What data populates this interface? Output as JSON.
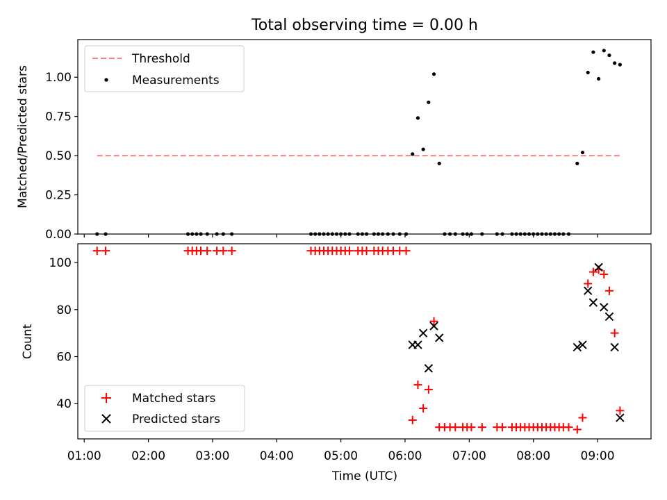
{
  "chart_data": [
    {
      "type": "scatter",
      "title": "Total observing time = 0.00 h",
      "xlabel": "",
      "ylabel": "Matched/Predicted stars",
      "xlim": [
        "00:54",
        "09:50"
      ],
      "ylim": [
        0,
        1.24
      ],
      "yticks": [
        "0.00",
        "0.25",
        "0.50",
        "0.75",
        "1.00"
      ],
      "legend_position": "top-left",
      "threshold": {
        "name": "Threshold",
        "value": 0.5,
        "x": [
          "01:12",
          "09:22"
        ],
        "color": "#ff7f7f",
        "style": "dashed"
      },
      "series": [
        {
          "name": "Measurements",
          "color": "#000000",
          "marker": "dot",
          "points": [
            [
              "01:12",
              0
            ],
            [
              "01:20",
              0
            ],
            [
              "02:37",
              0
            ],
            [
              "02:41",
              0
            ],
            [
              "02:45",
              0
            ],
            [
              "02:49",
              0
            ],
            [
              "02:55",
              0
            ],
            [
              "03:04",
              0
            ],
            [
              "03:10",
              0
            ],
            [
              "03:18",
              0
            ],
            [
              "04:32",
              0
            ],
            [
              "04:36",
              0
            ],
            [
              "04:40",
              0
            ],
            [
              "04:44",
              0
            ],
            [
              "04:48",
              0
            ],
            [
              "04:52",
              0
            ],
            [
              "04:56",
              0
            ],
            [
              "05:00",
              0
            ],
            [
              "05:04",
              0
            ],
            [
              "05:08",
              0
            ],
            [
              "05:16",
              0
            ],
            [
              "05:20",
              0
            ],
            [
              "05:24",
              0
            ],
            [
              "05:31",
              0
            ],
            [
              "05:35",
              0
            ],
            [
              "05:39",
              0
            ],
            [
              "05:44",
              0
            ],
            [
              "05:49",
              0
            ],
            [
              "05:55",
              0
            ],
            [
              "06:01",
              0
            ],
            [
              "06:07",
              0.51
            ],
            [
              "06:12",
              0.74
            ],
            [
              "06:17",
              0.54
            ],
            [
              "06:22",
              0.84
            ],
            [
              "06:27",
              1.02
            ],
            [
              "06:32",
              0.45
            ],
            [
              "06:37",
              0
            ],
            [
              "06:42",
              0
            ],
            [
              "06:47",
              0
            ],
            [
              "06:54",
              0
            ],
            [
              "06:58",
              0
            ],
            [
              "07:02",
              0
            ],
            [
              "07:12",
              0
            ],
            [
              "07:26",
              0
            ],
            [
              "07:31",
              0
            ],
            [
              "07:40",
              0
            ],
            [
              "07:44",
              0
            ],
            [
              "07:48",
              0
            ],
            [
              "07:52",
              0
            ],
            [
              "07:56",
              0
            ],
            [
              "08:00",
              0
            ],
            [
              "08:04",
              0
            ],
            [
              "08:08",
              0
            ],
            [
              "08:12",
              0
            ],
            [
              "08:16",
              0
            ],
            [
              "08:20",
              0
            ],
            [
              "08:24",
              0
            ],
            [
              "08:28",
              0
            ],
            [
              "08:33",
              0
            ],
            [
              "08:41",
              0.45
            ],
            [
              "08:46",
              0.52
            ],
            [
              "08:51",
              1.03
            ],
            [
              "08:56",
              1.16
            ],
            [
              "09:01",
              0.99
            ],
            [
              "09:06",
              1.17
            ],
            [
              "09:11",
              1.14
            ],
            [
              "09:16",
              1.09
            ],
            [
              "09:21",
              1.08
            ]
          ]
        }
      ]
    },
    {
      "type": "scatter",
      "title": "",
      "xlabel": "Time (UTC)",
      "ylabel": "Count",
      "xlim": [
        "00:54",
        "09:50"
      ],
      "ylim": [
        25,
        108
      ],
      "yticks": [
        "40",
        "60",
        "80",
        "100"
      ],
      "xticks": [
        "01:00",
        "02:00",
        "03:00",
        "04:00",
        "05:00",
        "06:00",
        "07:00",
        "08:00",
        "09:00"
      ],
      "legend_position": "bottom-left",
      "series": [
        {
          "name": "Matched stars",
          "color": "#ff0000",
          "marker": "plus",
          "points": [
            [
              "01:12",
              105
            ],
            [
              "01:20",
              105
            ],
            [
              "02:37",
              105
            ],
            [
              "02:41",
              105
            ],
            [
              "02:45",
              105
            ],
            [
              "02:49",
              105
            ],
            [
              "02:55",
              105
            ],
            [
              "03:04",
              105
            ],
            [
              "03:10",
              105
            ],
            [
              "03:18",
              105
            ],
            [
              "04:32",
              105
            ],
            [
              "04:36",
              105
            ],
            [
              "04:40",
              105
            ],
            [
              "04:44",
              105
            ],
            [
              "04:48",
              105
            ],
            [
              "04:52",
              105
            ],
            [
              "04:56",
              105
            ],
            [
              "05:00",
              105
            ],
            [
              "05:04",
              105
            ],
            [
              "05:08",
              105
            ],
            [
              "05:16",
              105
            ],
            [
              "05:20",
              105
            ],
            [
              "05:24",
              105
            ],
            [
              "05:31",
              105
            ],
            [
              "05:35",
              105
            ],
            [
              "05:39",
              105
            ],
            [
              "05:44",
              105
            ],
            [
              "05:49",
              105
            ],
            [
              "05:55",
              105
            ],
            [
              "06:01",
              105
            ],
            [
              "06:07",
              33
            ],
            [
              "06:12",
              48
            ],
            [
              "06:17",
              38
            ],
            [
              "06:22",
              46
            ],
            [
              "06:27",
              75
            ],
            [
              "06:32",
              30
            ],
            [
              "06:37",
              30
            ],
            [
              "06:42",
              30
            ],
            [
              "06:47",
              30
            ],
            [
              "06:54",
              30
            ],
            [
              "06:58",
              30
            ],
            [
              "07:02",
              30
            ],
            [
              "07:12",
              30
            ],
            [
              "07:26",
              30
            ],
            [
              "07:31",
              30
            ],
            [
              "07:40",
              30
            ],
            [
              "07:44",
              30
            ],
            [
              "07:48",
              30
            ],
            [
              "07:52",
              30
            ],
            [
              "07:56",
              30
            ],
            [
              "08:00",
              30
            ],
            [
              "08:04",
              30
            ],
            [
              "08:08",
              30
            ],
            [
              "08:12",
              30
            ],
            [
              "08:16",
              30
            ],
            [
              "08:20",
              30
            ],
            [
              "08:24",
              30
            ],
            [
              "08:28",
              30
            ],
            [
              "08:33",
              30
            ],
            [
              "08:41",
              29
            ],
            [
              "08:46",
              34
            ],
            [
              "08:51",
              91
            ],
            [
              "08:56",
              96
            ],
            [
              "09:01",
              97
            ],
            [
              "09:06",
              95
            ],
            [
              "09:11",
              88
            ],
            [
              "09:16",
              70
            ],
            [
              "09:21",
              37
            ]
          ]
        },
        {
          "name": "Predicted stars",
          "color": "#000000",
          "marker": "x",
          "points": [
            [
              "06:07",
              65
            ],
            [
              "06:12",
              65
            ],
            [
              "06:17",
              70
            ],
            [
              "06:22",
              55
            ],
            [
              "06:27",
              73
            ],
            [
              "06:32",
              68
            ],
            [
              "08:41",
              64
            ],
            [
              "08:46",
              65
            ],
            [
              "08:51",
              88
            ],
            [
              "08:56",
              83
            ],
            [
              "09:01",
              98
            ],
            [
              "09:06",
              81
            ],
            [
              "09:11",
              77
            ],
            [
              "09:16",
              64
            ],
            [
              "09:21",
              34
            ]
          ]
        }
      ]
    }
  ]
}
